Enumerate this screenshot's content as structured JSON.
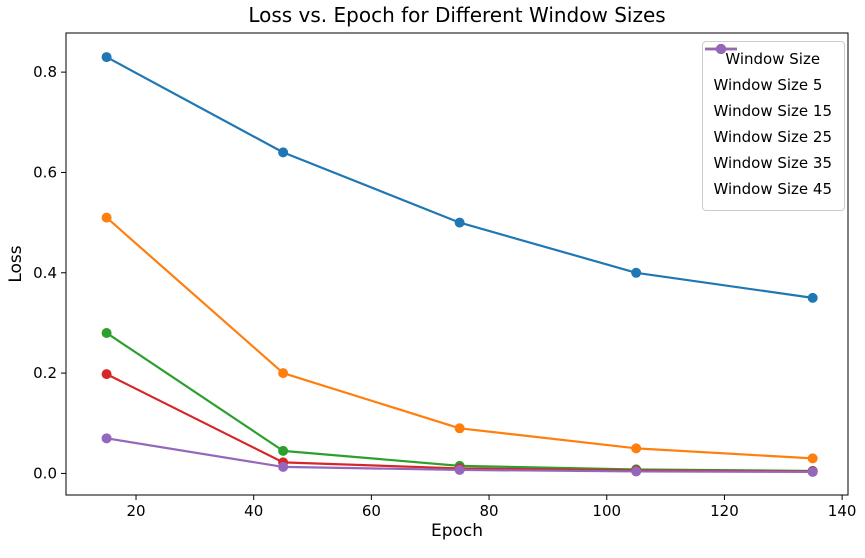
{
  "figure": {
    "title": "Loss vs. Epoch for Different Window Sizes",
    "xlabel": "Epoch",
    "ylabel": "Loss"
  },
  "chart_data": {
    "type": "line",
    "title": "Loss vs. Epoch for Different Window Sizes",
    "xlabel": "Epoch",
    "ylabel": "Loss",
    "x": [
      15,
      45,
      75,
      105,
      135
    ],
    "series": [
      {
        "name": "Window Size 5",
        "color": "#1f77b4",
        "values": [
          0.83,
          0.64,
          0.5,
          0.4,
          0.35
        ]
      },
      {
        "name": "Window Size 15",
        "color": "#ff7f0e",
        "values": [
          0.51,
          0.2,
          0.09,
          0.05,
          0.03
        ]
      },
      {
        "name": "Window Size 25",
        "color": "#2ca02c",
        "values": [
          0.28,
          0.045,
          0.015,
          0.008,
          0.005
        ]
      },
      {
        "name": "Window Size 35",
        "color": "#d62728",
        "values": [
          0.198,
          0.022,
          0.01,
          0.006,
          0.004
        ]
      },
      {
        "name": "Window Size 45",
        "color": "#9467bd",
        "values": [
          0.07,
          0.013,
          0.007,
          0.004,
          0.003
        ]
      }
    ],
    "legend": {
      "title": "Window Size",
      "position": "upper right"
    },
    "xticks": [
      20,
      40,
      60,
      80,
      100,
      120,
      140
    ],
    "yticks": [
      0.0,
      0.2,
      0.4,
      0.6,
      0.8
    ],
    "xlim": [
      8.1,
      141.0
    ],
    "ylim": [
      -0.043,
      0.878
    ],
    "grid": false,
    "marker": "o",
    "line_width": 2.2,
    "marker_radius": 5,
    "axis_color": "#000000",
    "text_color": "#000000"
  }
}
